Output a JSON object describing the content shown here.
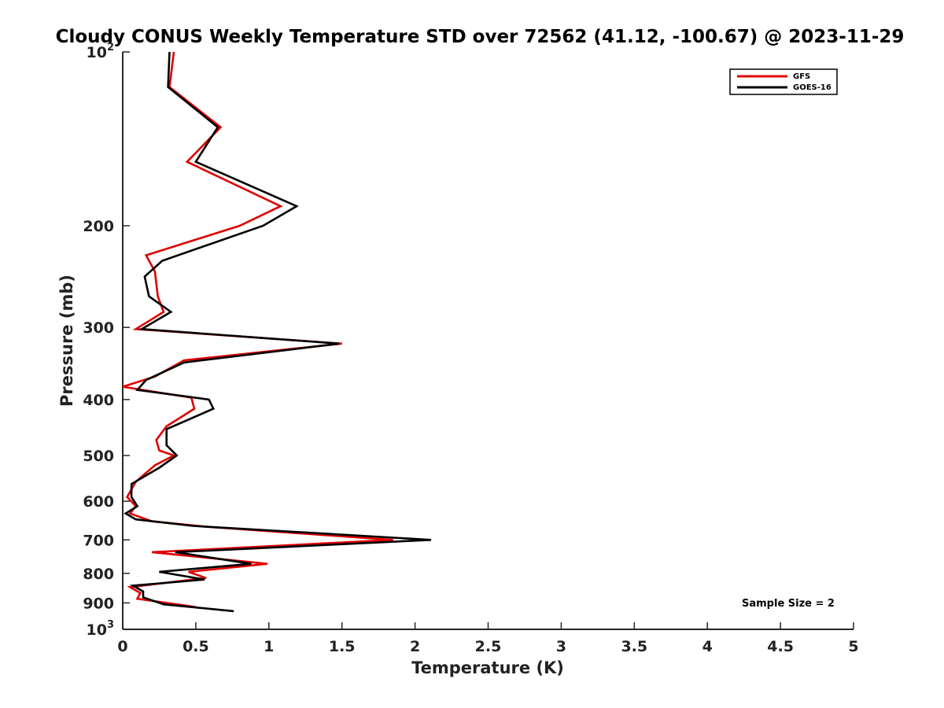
{
  "chart_data": {
    "type": "line",
    "title": "Cloudy CONUS Weekly Temperature STD over 72562 (41.12, -100.67) @ 2023-11-29",
    "xlabel": "Temperature (K)",
    "ylabel": "Pressure (mb)",
    "xlim": [
      0,
      5
    ],
    "ylim": [
      1000,
      100
    ],
    "y_scale": "log",
    "y_reversed": true,
    "grid": false,
    "legend_position": "top-right",
    "x_ticks": [
      "0",
      "0.5",
      "1",
      "1.5",
      "2",
      "2.5",
      "3",
      "3.5",
      "4",
      "4.5",
      "5"
    ],
    "x_tick_values": [
      0,
      0.5,
      1,
      1.5,
      2,
      2.5,
      3,
      3.5,
      4,
      4.5,
      5
    ],
    "y_ticks": [
      {
        "value": 100,
        "base": "10",
        "exp": "2"
      },
      {
        "value": 200,
        "label": "200"
      },
      {
        "value": 300,
        "label": "300"
      },
      {
        "value": 400,
        "label": "400"
      },
      {
        "value": 500,
        "label": "500"
      },
      {
        "value": 600,
        "label": "600"
      },
      {
        "value": 700,
        "label": "700"
      },
      {
        "value": 800,
        "label": "800"
      },
      {
        "value": 900,
        "label": "900"
      },
      {
        "value": 1000,
        "base": "10",
        "exp": "3"
      }
    ],
    "series": [
      {
        "name": "GFS",
        "color": "#e00000",
        "points": [
          [
            0.35,
            100
          ],
          [
            0.32,
            115
          ],
          [
            0.67,
            135
          ],
          [
            0.44,
            155
          ],
          [
            1.08,
            185
          ],
          [
            0.8,
            200
          ],
          [
            0.16,
            225
          ],
          [
            0.22,
            240
          ],
          [
            0.24,
            265
          ],
          [
            0.28,
            282
          ],
          [
            0.09,
            302
          ],
          [
            1.5,
            320
          ],
          [
            0.42,
            342
          ],
          [
            0.22,
            365
          ],
          [
            0.0,
            380
          ],
          [
            0.47,
            397
          ],
          [
            0.49,
            415
          ],
          [
            0.3,
            445
          ],
          [
            0.23,
            470
          ],
          [
            0.25,
            490
          ],
          [
            0.35,
            500
          ],
          [
            0.22,
            520
          ],
          [
            0.09,
            555
          ],
          [
            0.03,
            590
          ],
          [
            0.09,
            612
          ],
          [
            0.05,
            630
          ],
          [
            0.2,
            650
          ],
          [
            0.6,
            665
          ],
          [
            1.85,
            700
          ],
          [
            0.2,
            735
          ],
          [
            0.99,
            770
          ],
          [
            0.45,
            795
          ],
          [
            0.57,
            815
          ],
          [
            0.05,
            845
          ],
          [
            0.12,
            865
          ],
          [
            0.1,
            885
          ],
          [
            0.5,
            915
          ]
        ]
      },
      {
        "name": "GOES-16",
        "color": "#000000",
        "points": [
          [
            0.32,
            100
          ],
          [
            0.31,
            115
          ],
          [
            0.65,
            135
          ],
          [
            0.5,
            155
          ],
          [
            1.19,
            185
          ],
          [
            0.96,
            200
          ],
          [
            0.27,
            230
          ],
          [
            0.15,
            245
          ],
          [
            0.18,
            265
          ],
          [
            0.33,
            282
          ],
          [
            0.13,
            302
          ],
          [
            1.48,
            320
          ],
          [
            0.42,
            345
          ],
          [
            0.16,
            370
          ],
          [
            0.1,
            385
          ],
          [
            0.59,
            400
          ],
          [
            0.62,
            415
          ],
          [
            0.3,
            450
          ],
          [
            0.3,
            480
          ],
          [
            0.37,
            500
          ],
          [
            0.25,
            525
          ],
          [
            0.06,
            560
          ],
          [
            0.06,
            590
          ],
          [
            0.1,
            612
          ],
          [
            0.02,
            630
          ],
          [
            0.09,
            645
          ],
          [
            0.48,
            662
          ],
          [
            2.11,
            700
          ],
          [
            0.36,
            735
          ],
          [
            0.88,
            770
          ],
          [
            0.25,
            795
          ],
          [
            0.56,
            820
          ],
          [
            0.07,
            840
          ],
          [
            0.14,
            860
          ],
          [
            0.14,
            880
          ],
          [
            0.28,
            905
          ],
          [
            0.76,
            930
          ]
        ]
      }
    ],
    "legend": [
      "GFS",
      "GOES-16"
    ],
    "annotation": "Sample Size = 2"
  },
  "colors": {
    "axis": "#262626",
    "background": "#ffffff"
  }
}
